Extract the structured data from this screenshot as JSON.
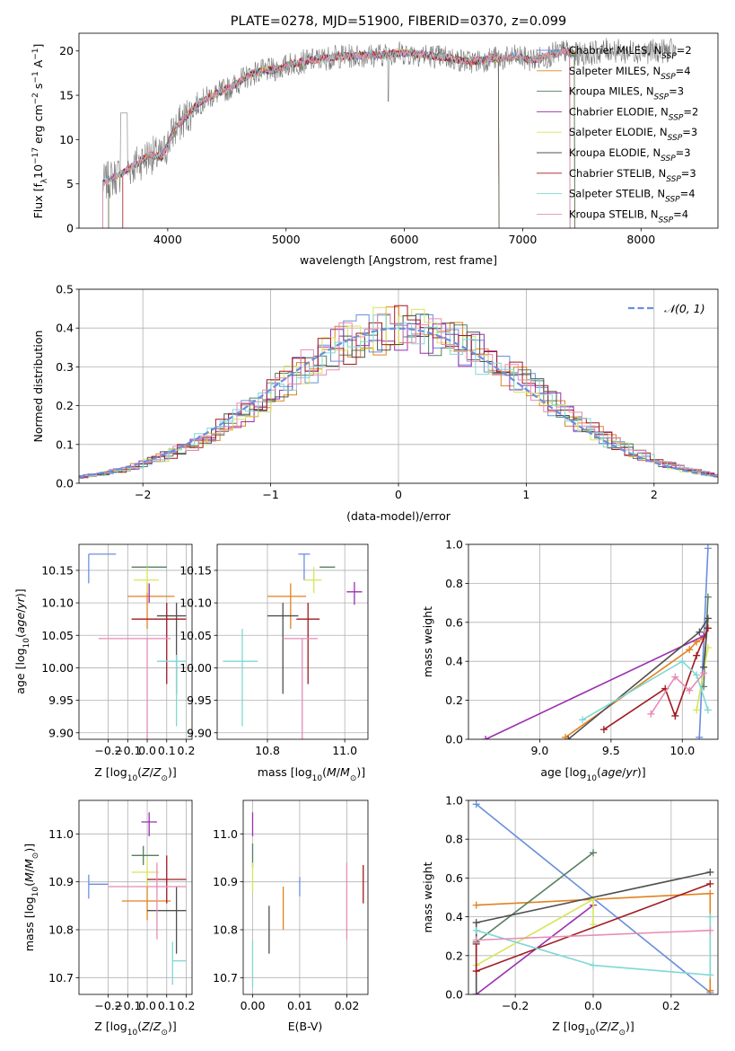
{
  "colors": [
    "#6a8fdf",
    "#e2821e",
    "#567f60",
    "#9b2fae",
    "#d6e55b",
    "#505050",
    "#a01a20",
    "#7fd8d4",
    "#e88bb5"
  ],
  "legend_labels": [
    "Chabrier MILES, N_SSP=2",
    "Salpeter MILES, N_SSP=4",
    "Kroupa MILES, N_SSP=3",
    "Chabrier ELODIE, N_SSP=2",
    "Salpeter ELODIE, N_SSP=3",
    "Kroupa ELODIE, N_SSP=3",
    "Chabrier STELIB, N_SSP=3",
    "Salpeter STELIB, N_SSP=4",
    "Kroupa STELIB, N_SSP=4"
  ],
  "chart_data": [
    {
      "id": "spectrum",
      "type": "line",
      "title": "PLATE=0278, MJD=51900, FIBERID=0370, z=0.099",
      "xlabel": "wavelength [Angstrom, rest frame]",
      "ylabel": "Flux [f_λ 10^-17 erg cm^-2 s^-1 A^-1]",
      "xlim": [
        3250,
        8650
      ],
      "ylim": [
        0,
        22
      ],
      "xticks": [
        4000,
        5000,
        6000,
        7000,
        8000
      ],
      "yticks": [
        0,
        5,
        10,
        15,
        20
      ],
      "legend_position": "upper-right",
      "continuum": {
        "x": [
          3450,
          3550,
          3650,
          3750,
          3850,
          3950,
          4050,
          4150,
          4250,
          4350,
          4450,
          4550,
          4650,
          4750,
          4850,
          4950,
          5050,
          5150,
          5250,
          5350,
          5450,
          5550,
          5650,
          5750,
          5850,
          5950,
          6050,
          6150,
          6250,
          6350,
          6450,
          6550,
          6650,
          6750,
          6850,
          6950,
          7050,
          7150,
          7250,
          7350,
          7450,
          7550,
          7650,
          7750,
          7850,
          7950,
          8050,
          8150
        ],
        "y": [
          5.0,
          5.8,
          6.5,
          7.4,
          8.3,
          8.0,
          11.0,
          12.5,
          14.0,
          14.8,
          15.4,
          16.0,
          17.0,
          17.6,
          17.8,
          18.0,
          18.6,
          18.8,
          19.0,
          19.2,
          19.4,
          19.4,
          19.5,
          19.5,
          19.6,
          19.8,
          19.7,
          19.6,
          19.4,
          19.3,
          19.0,
          18.8,
          18.9,
          19.2,
          19.1,
          19.4,
          19.0,
          19.2,
          19.6,
          20.0,
          19.6,
          19.7,
          19.9,
          20.2,
          19.8,
          20.0,
          19.9,
          20.0
        ]
      },
      "series": [
        {
          "name": "Chabrier MILES, N_SSP=2",
          "x_range": [
            3500,
            7440
          ]
        },
        {
          "name": "Salpeter MILES, N_SSP=4",
          "x_range": [
            3500,
            7440
          ]
        },
        {
          "name": "Kroupa MILES, N_SSP=3",
          "x_range": [
            3500,
            7440
          ]
        },
        {
          "name": "Chabrier ELODIE, N_SSP=2",
          "x_range": [
            3450,
            6800
          ]
        },
        {
          "name": "Salpeter ELODIE, N_SSP=3",
          "x_range": [
            3450,
            6800
          ]
        },
        {
          "name": "Kroupa ELODIE, N_SSP=3",
          "x_range": [
            3450,
            6800
          ]
        },
        {
          "name": "Chabrier STELIB, N_SSP=3",
          "x_range": [
            3620,
            7400
          ]
        },
        {
          "name": "Salpeter STELIB, N_SSP=4",
          "x_range": [
            3450,
            7400
          ]
        },
        {
          "name": "Kroupa STELIB, N_SSP=4",
          "x_range": [
            3450,
            7400
          ]
        }
      ],
      "observed_data_x_range": [
        3450,
        8300
      ]
    },
    {
      "id": "residuals",
      "type": "line",
      "xlabel": "(data-model)/error",
      "ylabel": "Normed distribution",
      "xlim": [
        -2.5,
        2.5
      ],
      "ylim": [
        0,
        0.5
      ],
      "xticks": [
        -2,
        -1,
        0,
        1,
        2
      ],
      "yticks": [
        0.0,
        0.1,
        0.2,
        0.3,
        0.4,
        0.5
      ],
      "grid": true,
      "bin_width": 0.1,
      "reference_curve": {
        "name": "𝒩(0, 1)",
        "mean": 0,
        "sigma": 1
      },
      "legend_position": "upper-right"
    },
    {
      "id": "age-vs-Z",
      "type": "scatter",
      "xlabel": "Z [log10(Z/Z⊙)]",
      "ylabel": "age  [log10(age/yr)]",
      "xlim": [
        -0.35,
        0.23
      ],
      "ylim": [
        9.89,
        10.19
      ],
      "xticks": [
        -0.2,
        -0.1,
        0.0,
        0.1,
        0.2
      ],
      "yticks": [
        9.9,
        9.95,
        10.0,
        10.05,
        10.1,
        10.15
      ],
      "grid": true,
      "points": [
        {
          "x": -0.3,
          "y": 10.175,
          "xerr": [
            0.0,
            0.14
          ],
          "yerr": [
            0.045,
            0.0
          ]
        },
        {
          "x": 0.0,
          "y": 10.11,
          "xerr": [
            0.1,
            0.14
          ],
          "yerr": [
            0.05,
            0.02
          ]
        },
        {
          "x": 0.0,
          "y": 10.155,
          "xerr": [
            0.08,
            0.1
          ],
          "yerr": [
            0.0,
            0.0
          ]
        },
        {
          "x": 0.01,
          "y": 10.115,
          "xerr": [
            0.0,
            0.0
          ],
          "yerr": [
            0.015,
            0.015
          ]
        },
        {
          "x": 0.0,
          "y": 10.135,
          "xerr": [
            0.07,
            0.06
          ],
          "yerr": [
            0.02,
            0.02
          ]
        },
        {
          "x": 0.15,
          "y": 10.08,
          "xerr": [
            0.1,
            0.05
          ],
          "yerr": [
            0.12,
            0.02
          ]
        },
        {
          "x": 0.1,
          "y": 10.075,
          "xerr": [
            0.18,
            0.1
          ],
          "yerr": [
            0.1,
            0.025
          ]
        },
        {
          "x": 0.15,
          "y": 10.01,
          "xerr": [
            0.1,
            0.05
          ],
          "yerr": [
            0.1,
            0.01
          ]
        },
        {
          "x": 0.0,
          "y": 10.045,
          "xerr": [
            0.25,
            0.12
          ],
          "yerr": [
            0.2,
            0.0
          ]
        }
      ]
    },
    {
      "id": "age-vs-mass",
      "type": "scatter",
      "xlabel": "mass [log10(M/M⊙)]",
      "ylabel": "",
      "xlim": [
        10.67,
        11.06
      ],
      "ylim": [
        9.89,
        10.19
      ],
      "xticks": [
        10.8,
        11.0
      ],
      "yticks": [
        9.9,
        9.95,
        10.0,
        10.05,
        10.1,
        10.15
      ],
      "grid": true,
      "points": [
        {
          "x": 10.895,
          "y": 10.175,
          "xerr": [
            0.015,
            0.015
          ],
          "yerr": [
            0.04,
            0.0
          ]
        },
        {
          "x": 10.86,
          "y": 10.11,
          "xerr": [
            0.06,
            0.04
          ],
          "yerr": [
            0.05,
            0.02
          ]
        },
        {
          "x": 10.955,
          "y": 10.155,
          "xerr": [
            0.02,
            0.02
          ],
          "yerr": [
            0.0,
            0.0
          ]
        },
        {
          "x": 11.025,
          "y": 10.117,
          "xerr": [
            0.02,
            0.02
          ],
          "yerr": [
            0.02,
            0.015
          ]
        },
        {
          "x": 10.92,
          "y": 10.135,
          "xerr": [
            0.025,
            0.02
          ],
          "yerr": [
            0.02,
            0.02
          ]
        },
        {
          "x": 10.84,
          "y": 10.08,
          "xerr": [
            0.04,
            0.04
          ],
          "yerr": [
            0.12,
            0.02
          ]
        },
        {
          "x": 10.905,
          "y": 10.075,
          "xerr": [
            0.03,
            0.03
          ],
          "yerr": [
            0.1,
            0.025
          ]
        },
        {
          "x": 10.735,
          "y": 10.01,
          "xerr": [
            0.05,
            0.04
          ],
          "yerr": [
            0.1,
            0.05
          ]
        },
        {
          "x": 10.89,
          "y": 10.045,
          "xerr": [
            0.05,
            0.04
          ],
          "yerr": [
            0.2,
            0.0
          ]
        }
      ]
    },
    {
      "id": "massweight-vs-age",
      "type": "line",
      "xlabel": "age  [log10(age/yr)]",
      "ylabel": "mass weight",
      "xlim": [
        8.5,
        10.25
      ],
      "ylim": [
        0,
        1
      ],
      "xticks": [
        9.0,
        9.5,
        10.0
      ],
      "yticks": [
        0.0,
        0.2,
        0.4,
        0.6,
        0.8,
        1.0
      ],
      "grid": true,
      "series": [
        {
          "x": [
            10.12,
            10.18
          ],
          "y": [
            0.01,
            0.98
          ]
        },
        {
          "x": [
            9.18,
            10.05,
            10.1,
            10.15
          ],
          "y": [
            0.01,
            0.46,
            0.5,
            0.52
          ]
        },
        {
          "x": [
            10.15,
            10.18
          ],
          "y": [
            0.27,
            0.73
          ]
        },
        {
          "x": [
            8.62,
            10.15
          ],
          "y": [
            0.0,
            0.53
          ]
        },
        {
          "x": [
            10.1,
            10.18
          ],
          "y": [
            0.15,
            0.47
          ]
        },
        {
          "x": [
            9.2,
            10.12,
            10.18,
            10.15
          ],
          "y": [
            0.0,
            0.55,
            0.62,
            0.37
          ]
        },
        {
          "x": [
            9.45,
            9.88,
            9.95,
            10.1,
            10.18
          ],
          "y": [
            0.05,
            0.26,
            0.12,
            0.43,
            0.57
          ]
        },
        {
          "x": [
            9.3,
            10.0,
            10.1,
            10.18
          ],
          "y": [
            0.1,
            0.4,
            0.33,
            0.15
          ]
        },
        {
          "x": [
            9.78,
            9.95,
            10.05,
            10.15
          ],
          "y": [
            0.13,
            0.32,
            0.25,
            0.34
          ]
        }
      ]
    },
    {
      "id": "mass-vs-Z",
      "type": "scatter",
      "xlabel": "Z [log10(Z/Z⊙)]",
      "ylabel": "mass [log10(M/M⊙)]",
      "xlim": [
        -0.35,
        0.23
      ],
      "ylim": [
        10.665,
        11.07
      ],
      "xticks": [
        -0.2,
        -0.1,
        0.0,
        0.1,
        0.2
      ],
      "yticks": [
        10.7,
        10.8,
        10.9,
        11.0
      ],
      "grid": true,
      "points": [
        {
          "x": -0.3,
          "y": 10.895,
          "xerr": [
            0.0,
            0.1
          ],
          "yerr": [
            0.03,
            0.02
          ]
        },
        {
          "x": 0.0,
          "y": 10.86,
          "xerr": [
            0.13,
            0.12
          ],
          "yerr": [
            0.04,
            0.04
          ]
        },
        {
          "x": -0.02,
          "y": 10.955,
          "xerr": [
            0.06,
            0.08
          ],
          "yerr": [
            0.02,
            0.02
          ]
        },
        {
          "x": 0.01,
          "y": 11.025,
          "xerr": [
            0.04,
            0.04
          ],
          "yerr": [
            0.03,
            0.02
          ]
        },
        {
          "x": 0.0,
          "y": 10.92,
          "xerr": [
            0.08,
            0.06
          ],
          "yerr": [
            0.03,
            0.03
          ]
        },
        {
          "x": 0.15,
          "y": 10.84,
          "xerr": [
            0.15,
            0.05
          ],
          "yerr": [
            0.09,
            0.05
          ]
        },
        {
          "x": 0.1,
          "y": 10.905,
          "xerr": [
            0.1,
            0.1
          ],
          "yerr": [
            0.05,
            0.05
          ]
        },
        {
          "x": 0.13,
          "y": 10.735,
          "xerr": [
            0.0,
            0.07
          ],
          "yerr": [
            0.05,
            0.04
          ]
        },
        {
          "x": 0.05,
          "y": 10.89,
          "xerr": [
            0.25,
            0.15
          ],
          "yerr": [
            0.11,
            0.05
          ]
        }
      ]
    },
    {
      "id": "mass-vs-EBV",
      "type": "scatter",
      "xlabel": "E(B-V)",
      "ylabel": "",
      "xlim": [
        -0.002,
        0.0245
      ],
      "ylim": [
        10.665,
        11.07
      ],
      "xticks": [
        0.0,
        0.01,
        0.02
      ],
      "yticks": [
        10.7,
        10.8,
        10.9,
        11.0
      ],
      "grid": true,
      "points": [
        {
          "x": 0.01,
          "y": 10.89,
          "xerr": [
            0,
            0
          ],
          "yerr": [
            0.02,
            0.02
          ]
        },
        {
          "x": 0.0065,
          "y": 10.845,
          "xerr": [
            0,
            0
          ],
          "yerr": [
            0.045,
            0.045
          ]
        },
        {
          "x": 0.0,
          "y": 10.955,
          "xerr": [
            0,
            0
          ],
          "yerr": [
            0.025,
            0.025
          ]
        },
        {
          "x": 0.0,
          "y": 11.025,
          "xerr": [
            0,
            0
          ],
          "yerr": [
            0.03,
            0.02
          ]
        },
        {
          "x": 0.0,
          "y": 10.91,
          "xerr": [
            0,
            0
          ],
          "yerr": [
            0.03,
            0.03
          ]
        },
        {
          "x": 0.0035,
          "y": 10.8,
          "xerr": [
            0,
            0
          ],
          "yerr": [
            0.05,
            0.05
          ]
        },
        {
          "x": 0.0235,
          "y": 10.895,
          "xerr": [
            0,
            0
          ],
          "yerr": [
            0.04,
            0.04
          ]
        },
        {
          "x": 0.0,
          "y": 10.73,
          "xerr": [
            0,
            0
          ],
          "yerr": [
            0.05,
            0.05
          ]
        },
        {
          "x": 0.02,
          "y": 10.86,
          "xerr": [
            0,
            0
          ],
          "yerr": [
            0.08,
            0.08
          ]
        }
      ]
    },
    {
      "id": "massweight-vs-Z",
      "type": "line",
      "xlabel": "Z [log10(Z/Z⊙)]",
      "ylabel": "mass weight",
      "xlim": [
        -0.32,
        0.32
      ],
      "ylim": [
        0,
        1
      ],
      "xticks": [
        -0.2,
        0.0,
        0.2
      ],
      "yticks": [
        0.0,
        0.2,
        0.4,
        0.6,
        0.8,
        1.0
      ],
      "grid": true,
      "series": [
        {
          "x": [
            -0.3,
            0.3
          ],
          "y": [
            0.98,
            0.01
          ]
        },
        {
          "x": [
            -0.3,
            0.0,
            0.3,
            0.3
          ],
          "y": [
            0.46,
            0.49,
            0.52,
            0.02
          ]
        },
        {
          "x": [
            -0.3,
            0.0
          ],
          "y": [
            0.27,
            0.73
          ]
        },
        {
          "x": [
            -0.3,
            0.0
          ],
          "y": [
            0.0,
            0.46
          ]
        },
        {
          "x": [
            -0.3,
            0.0,
            0.0
          ],
          "y": [
            0.15,
            0.49,
            0.36
          ]
        },
        {
          "x": [
            -0.3,
            -0.3,
            0.3
          ],
          "y": [
            0.0,
            0.37,
            0.63
          ]
        },
        {
          "x": [
            -0.3,
            -0.3,
            0.3
          ],
          "y": [
            0.26,
            0.12,
            0.57
          ]
        },
        {
          "x": [
            -0.3,
            0.0,
            0.3,
            0.3
          ],
          "y": [
            0.33,
            0.15,
            0.1,
            0.4
          ]
        },
        {
          "x": [
            -0.3,
            0.3
          ],
          "y": [
            0.28,
            0.33
          ]
        }
      ]
    }
  ]
}
